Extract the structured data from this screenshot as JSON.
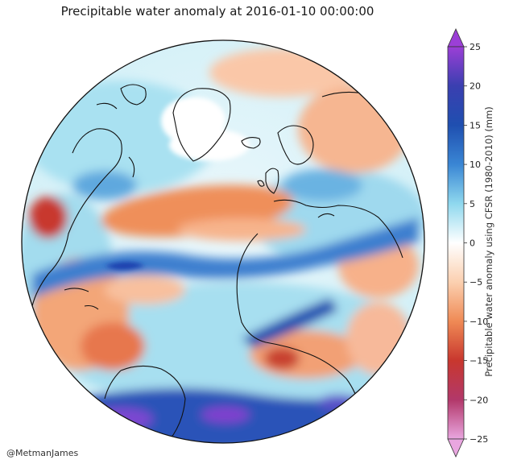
{
  "title": "Precipitable water anomaly at 2016-01-10 00:00:00",
  "credit": "@MetmanJames",
  "colorbar": {
    "label": "Precipitable water anomaly using CFSR (1980-2010) (mm)",
    "ticks": [
      "25",
      "20",
      "15",
      "10",
      "5",
      "0",
      "−5",
      "−10",
      "−15",
      "−20",
      "−25"
    ],
    "colors": {
      "deep_positive": "#9b3fd6",
      "strong_positive": "#1f3fae",
      "positive": "#3a86d4",
      "light_positive": "#8fd8ee",
      "neutral": "#ffffff",
      "light_negative": "#fbd0b0",
      "negative": "#ef8a55",
      "strong_negative": "#c8372e",
      "deep_negative": "#e9a6e0"
    }
  },
  "map": {
    "projection": "orthographic globe centered on the North Atlantic"
  }
}
